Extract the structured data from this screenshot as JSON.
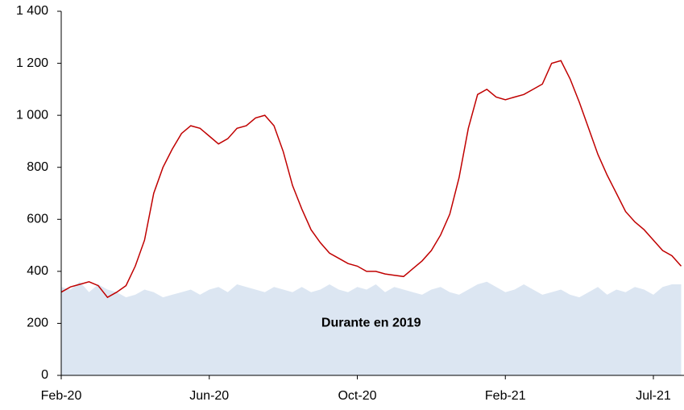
{
  "chart_data": {
    "type": "line",
    "categories": [
      "Feb-20",
      null,
      null,
      null,
      null,
      null,
      null,
      null,
      null,
      null,
      null,
      null,
      null,
      null,
      null,
      null,
      "Jun-20",
      null,
      null,
      null,
      null,
      null,
      null,
      null,
      null,
      null,
      null,
      null,
      null,
      null,
      null,
      null,
      "Oct-20",
      null,
      null,
      null,
      null,
      null,
      null,
      null,
      null,
      null,
      null,
      null,
      null,
      null,
      null,
      null,
      "Feb-21",
      null,
      null,
      null,
      null,
      null,
      null,
      null,
      null,
      null,
      null,
      null,
      null,
      null,
      null,
      null,
      "Jul-21",
      null,
      null,
      null
    ],
    "series": [
      {
        "color": "#c00000",
        "type": "line",
        "values": [
          320,
          340,
          350,
          360,
          345,
          300,
          320,
          345,
          420,
          520,
          700,
          800,
          870,
          930,
          960,
          950,
          920,
          890,
          910,
          950,
          960,
          990,
          1000,
          960,
          860,
          730,
          640,
          560,
          510,
          470,
          450,
          430,
          420,
          400,
          400,
          390,
          385,
          380,
          410,
          440,
          480,
          540,
          620,
          760,
          950,
          1080,
          1100,
          1070,
          1060,
          1070,
          1080,
          1100,
          1120,
          1200,
          1210,
          1140,
          1050,
          950,
          850,
          770,
          700,
          630,
          590,
          560,
          520,
          480,
          460,
          420
        ]
      },
      {
        "name": "Durante en 2019",
        "color": "#dce6f2",
        "type": "area",
        "values": [
          340,
          330,
          360,
          320,
          350,
          330,
          320,
          300,
          310,
          330,
          320,
          300,
          310,
          320,
          330,
          310,
          330,
          340,
          320,
          350,
          340,
          330,
          320,
          340,
          330,
          320,
          340,
          320,
          330,
          350,
          330,
          320,
          340,
          330,
          350,
          320,
          340,
          330,
          320,
          310,
          330,
          340,
          320,
          310,
          330,
          350,
          360,
          340,
          320,
          330,
          350,
          330,
          310,
          320,
          330,
          310,
          300,
          320,
          340,
          310,
          330,
          320,
          340,
          330,
          310,
          340,
          350,
          350
        ]
      }
    ],
    "ylim": [
      0,
      1400
    ],
    "yticks": [
      0,
      200,
      400,
      600,
      800,
      {
        "value": 1000,
        "label": "1 000"
      },
      {
        "value": 1200,
        "label": "1 200"
      },
      {
        "value": 1400,
        "label": "1 400"
      }
    ],
    "grid": false
  }
}
